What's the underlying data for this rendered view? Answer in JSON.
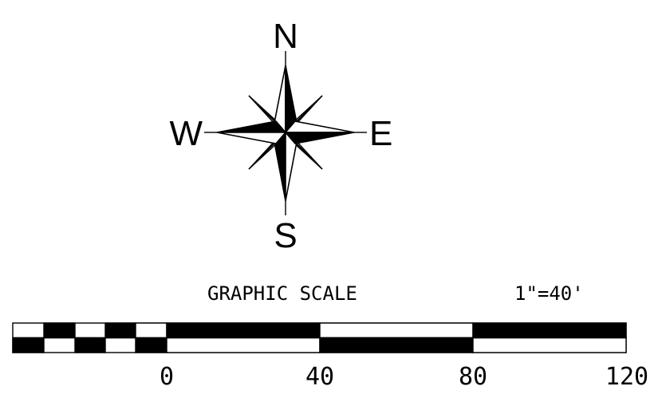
{
  "compass": {
    "north": "N",
    "south": "S",
    "east": "E",
    "west": "W"
  },
  "scale": {
    "title": "GRAPHIC SCALE",
    "ratio": "1\"=40'",
    "labels": [
      "0",
      "40",
      "80",
      "120"
    ]
  },
  "colors": {
    "ink": "#000000",
    "paper": "#ffffff"
  }
}
